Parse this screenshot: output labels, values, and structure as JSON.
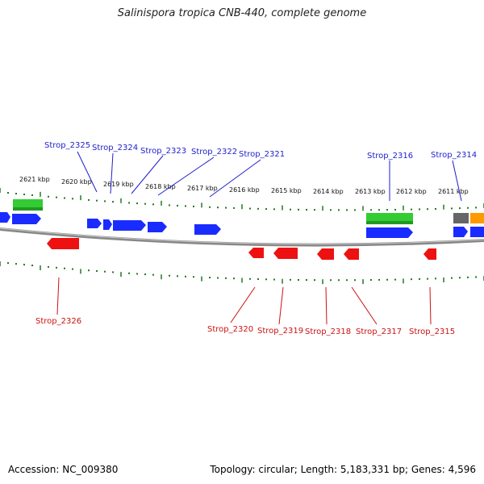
{
  "title": "Salinispora tropica CNB-440, complete genome",
  "accession": "Accession: NC_009380",
  "summary": "Topology: circular; Length: 5,183,331 bp; Genes: 4,596",
  "colors": {
    "blue": "#1a2bff",
    "red": "#ee1111",
    "green": "#33cc33",
    "gray": "#666666",
    "orange": "#ff9900",
    "backbone": "#888888",
    "tick": "#227722",
    "label_blue": "#1e1ecc",
    "label_red": "#cc1111"
  },
  "scale_labels": [
    "2621 kbp",
    "2620 kbp",
    "2619 kbp",
    "2618 kbp",
    "2617 kbp",
    "2616 kbp",
    "2615 kbp",
    "2614 kbp",
    "2613 kbp",
    "2612 kbp",
    "2611 kbp"
  ],
  "forward_labels": [
    "Strop_2325",
    "Strop_2324",
    "Strop_2323",
    "Strop_2322",
    "Strop_2321",
    "Strop_2316",
    "Strop_2314"
  ],
  "reverse_labels": [
    "Strop_2326",
    "Strop_2320",
    "Strop_2319",
    "Strop_2318",
    "Strop_2317",
    "Strop_2315"
  ]
}
